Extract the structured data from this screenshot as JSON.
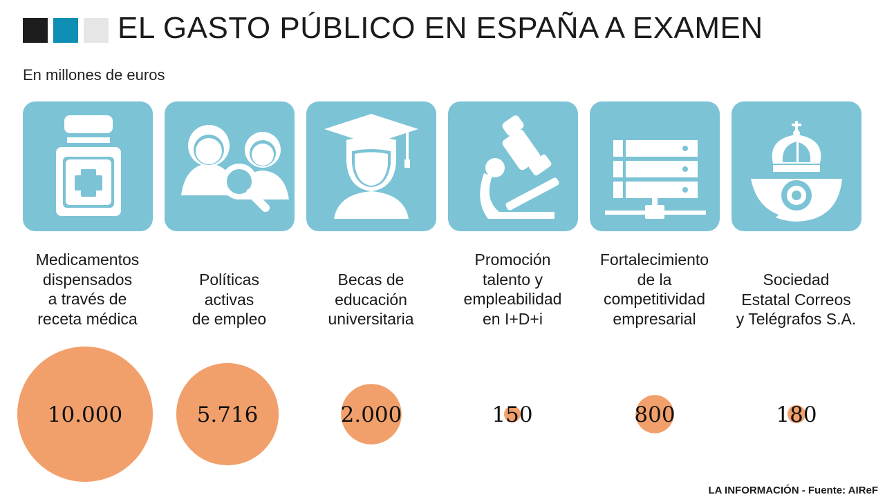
{
  "header": {
    "title": "EL GASTO PÚBLICO EN ESPAÑA A EXAMEN",
    "subtitle": "En millones de euros",
    "squares": [
      "#1d1d1d",
      "#0e8fb3",
      "#e6e6e6"
    ]
  },
  "colors": {
    "tile": "#7cc3d6",
    "bubble": "#f2a06b",
    "icon_fill": "#ffffff"
  },
  "items": [
    {
      "label": "Medicamentos\ndispensados\na través de\nreceta médica",
      "value_text": "10.000",
      "icon": "medicine-bottle-icon"
    },
    {
      "label": "Políticas\nactivas\nde empleo",
      "value_text": "5.716",
      "icon": "job-seekers-magnifier-icon"
    },
    {
      "label": "Becas de\neducación\nuniversitaria",
      "value_text": "2.000",
      "icon": "graduate-icon"
    },
    {
      "label": "Promoción\ntalento y\nempleabilidad\nen I+D+i",
      "value_text": "150",
      "icon": "microscope-icon"
    },
    {
      "label": "Fortalecimiento\nde la\ncompetitividad\nempresarial",
      "value_text": "800",
      "icon": "server-network-icon"
    },
    {
      "label": "Sociedad\nEstatal Correos\ny Telégrafos S.A.",
      "value_text": "180",
      "icon": "correos-crown-horn-icon"
    }
  ],
  "chart_data": {
    "type": "bubble",
    "unit": "millones de euros",
    "categories": [
      "Medicamentos dispensados a través de receta médica",
      "Políticas activas de empleo",
      "Becas de educación universitaria",
      "Promoción talento y empleabilidad en I+D+i",
      "Fortalecimiento de la competitividad empresarial",
      "Sociedad Estatal Correos y Telégrafos S.A."
    ],
    "values": [
      10000,
      5716,
      2000,
      150,
      800,
      180
    ]
  },
  "footer": {
    "source": "LA INFORMACIÓN - Fuente: AIReF"
  }
}
